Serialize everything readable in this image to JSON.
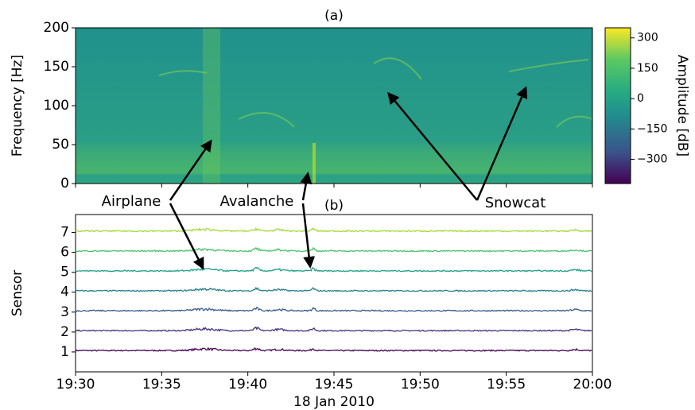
{
  "chart_data": [
    {
      "type": "spectrogram",
      "title": "(a)",
      "ylabel": "Frequency [Hz]",
      "xlim": [
        0,
        30
      ],
      "xticks": [
        {
          "value": 0,
          "label": "19:30"
        },
        {
          "value": 5,
          "label": "19:35"
        },
        {
          "value": 10,
          "label": "19:40"
        },
        {
          "value": 15,
          "label": "19:45"
        },
        {
          "value": 20,
          "label": "19:50"
        },
        {
          "value": 25,
          "label": "19:55"
        },
        {
          "value": 30,
          "label": "20:00"
        }
      ],
      "ylim": [
        0,
        200
      ],
      "yticks": [
        0,
        50,
        100,
        150,
        200
      ],
      "colorbar": {
        "label": "Amplitude [dB]",
        "lim": [
          -420,
          350
        ],
        "ticks": [
          {
            "value": -300,
            "label": "−300"
          },
          {
            "value": -150,
            "label": "−150"
          },
          0,
          150,
          300
        ]
      },
      "annotations": [
        "Airplane",
        "Avalanche",
        "Snowcat"
      ]
    },
    {
      "type": "line",
      "title": "(b)",
      "ylabel": "Sensor",
      "xlabel": "18 Jan 2010",
      "xlim": [
        0,
        30
      ],
      "xticks": [
        {
          "value": 0,
          "label": "19:30"
        },
        {
          "value": 5,
          "label": "19:35"
        },
        {
          "value": 10,
          "label": "19:40"
        },
        {
          "value": 15,
          "label": "19:45"
        },
        {
          "value": 20,
          "label": "19:50"
        },
        {
          "value": 25,
          "label": "19:55"
        },
        {
          "value": 30,
          "label": "20:00"
        }
      ],
      "ylim": [
        0,
        7.9
      ],
      "yticks": [
        1,
        2,
        3,
        4,
        5,
        6,
        7
      ],
      "colors": [
        "#440154",
        "#46327e",
        "#365c8d",
        "#277f8e",
        "#1fa187",
        "#4ac16d",
        "#a5db36"
      ]
    }
  ]
}
